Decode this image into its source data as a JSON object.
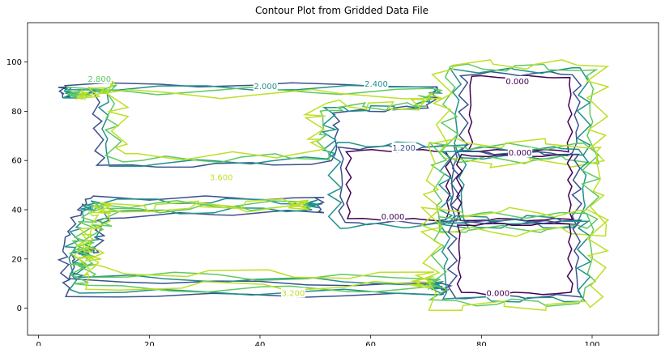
{
  "chart_data": {
    "type": "contour",
    "title": "Contour Plot from Gridded Data File",
    "xlim": [
      -2,
      112
    ],
    "ylim": [
      -11,
      116
    ],
    "x_ticks": [
      0,
      20,
      40,
      60,
      80,
      100
    ],
    "y_ticks": [
      0,
      20,
      40,
      60,
      80,
      100
    ],
    "grid": false,
    "colormap": [
      "#440154",
      "#3b528b",
      "#21918c",
      "#5ec962",
      "#bddf26"
    ],
    "contour_labels": [
      {
        "text": "0.000",
        "x": 86.5,
        "y": 92,
        "level": 0
      },
      {
        "text": "0.000",
        "x": 87,
        "y": 63,
        "level": 0
      },
      {
        "text": "0.000",
        "x": 64,
        "y": 37,
        "level": 0
      },
      {
        "text": "0.000",
        "x": 83,
        "y": 6,
        "level": 0
      },
      {
        "text": "1.200",
        "x": 66,
        "y": 65,
        "level": 1
      },
      {
        "text": "2.000",
        "x": 41,
        "y": 90,
        "level": 2
      },
      {
        "text": "2.400",
        "x": 61,
        "y": 91,
        "level": 2
      },
      {
        "text": "2.800",
        "x": 11,
        "y": 93,
        "level": 3
      },
      {
        "text": "3.600",
        "x": 33,
        "y": 53,
        "level": 4
      },
      {
        "text": "3.200",
        "x": 46,
        "y": 6,
        "level": 4
      }
    ]
  }
}
